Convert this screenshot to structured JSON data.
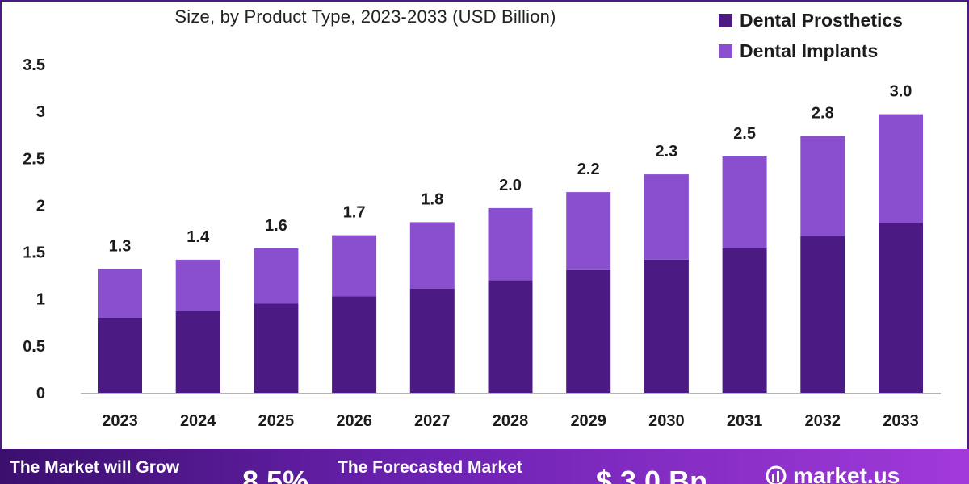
{
  "header": {
    "subtitle": "Size, by Product Type, 2023-2033 (USD Billion)"
  },
  "legend": [
    {
      "label": "Dental Prosthetics",
      "color": "#4b1a82"
    },
    {
      "label": "Dental Implants",
      "color": "#8a4fcf"
    }
  ],
  "chart_data": {
    "type": "bar",
    "stacked": true,
    "title": "Size, by Product Type, 2023-2033 (USD Billion)",
    "xlabel": "",
    "ylabel": "",
    "categories": [
      "2023",
      "2024",
      "2025",
      "2026",
      "2027",
      "2028",
      "2029",
      "2030",
      "2031",
      "2032",
      "2033"
    ],
    "series": [
      {
        "name": "Dental Prosthetics",
        "color": "#4b1a82",
        "values": [
          0.8,
          0.87,
          0.95,
          1.03,
          1.11,
          1.2,
          1.31,
          1.42,
          1.54,
          1.67,
          1.81
        ]
      },
      {
        "name": "Dental Implants",
        "color": "#8a4fcf",
        "values": [
          0.52,
          0.55,
          0.59,
          0.65,
          0.71,
          0.77,
          0.83,
          0.91,
          0.98,
          1.07,
          1.16
        ]
      }
    ],
    "totals_labels": [
      "1.3",
      "1.4",
      "1.6",
      "1.7",
      "1.8",
      "2.0",
      "2.2",
      "2.3",
      "2.5",
      "2.8",
      "3.0"
    ],
    "yticks": [
      "0",
      "0.5",
      "1",
      "1.5",
      "2",
      "2.5",
      "3",
      "3.5"
    ],
    "ylim": [
      0,
      3.5
    ],
    "grid": false,
    "legend_position": "top-right"
  },
  "banner": {
    "grow_text": "The Market will Grow",
    "cagr": "8.5%",
    "forecast_text": "The Forecasted Market",
    "value": "$ 3.0 Bn",
    "logo_text": "market.us",
    "color_start": "#3b0f6e",
    "color_end": "#a13ad9"
  }
}
